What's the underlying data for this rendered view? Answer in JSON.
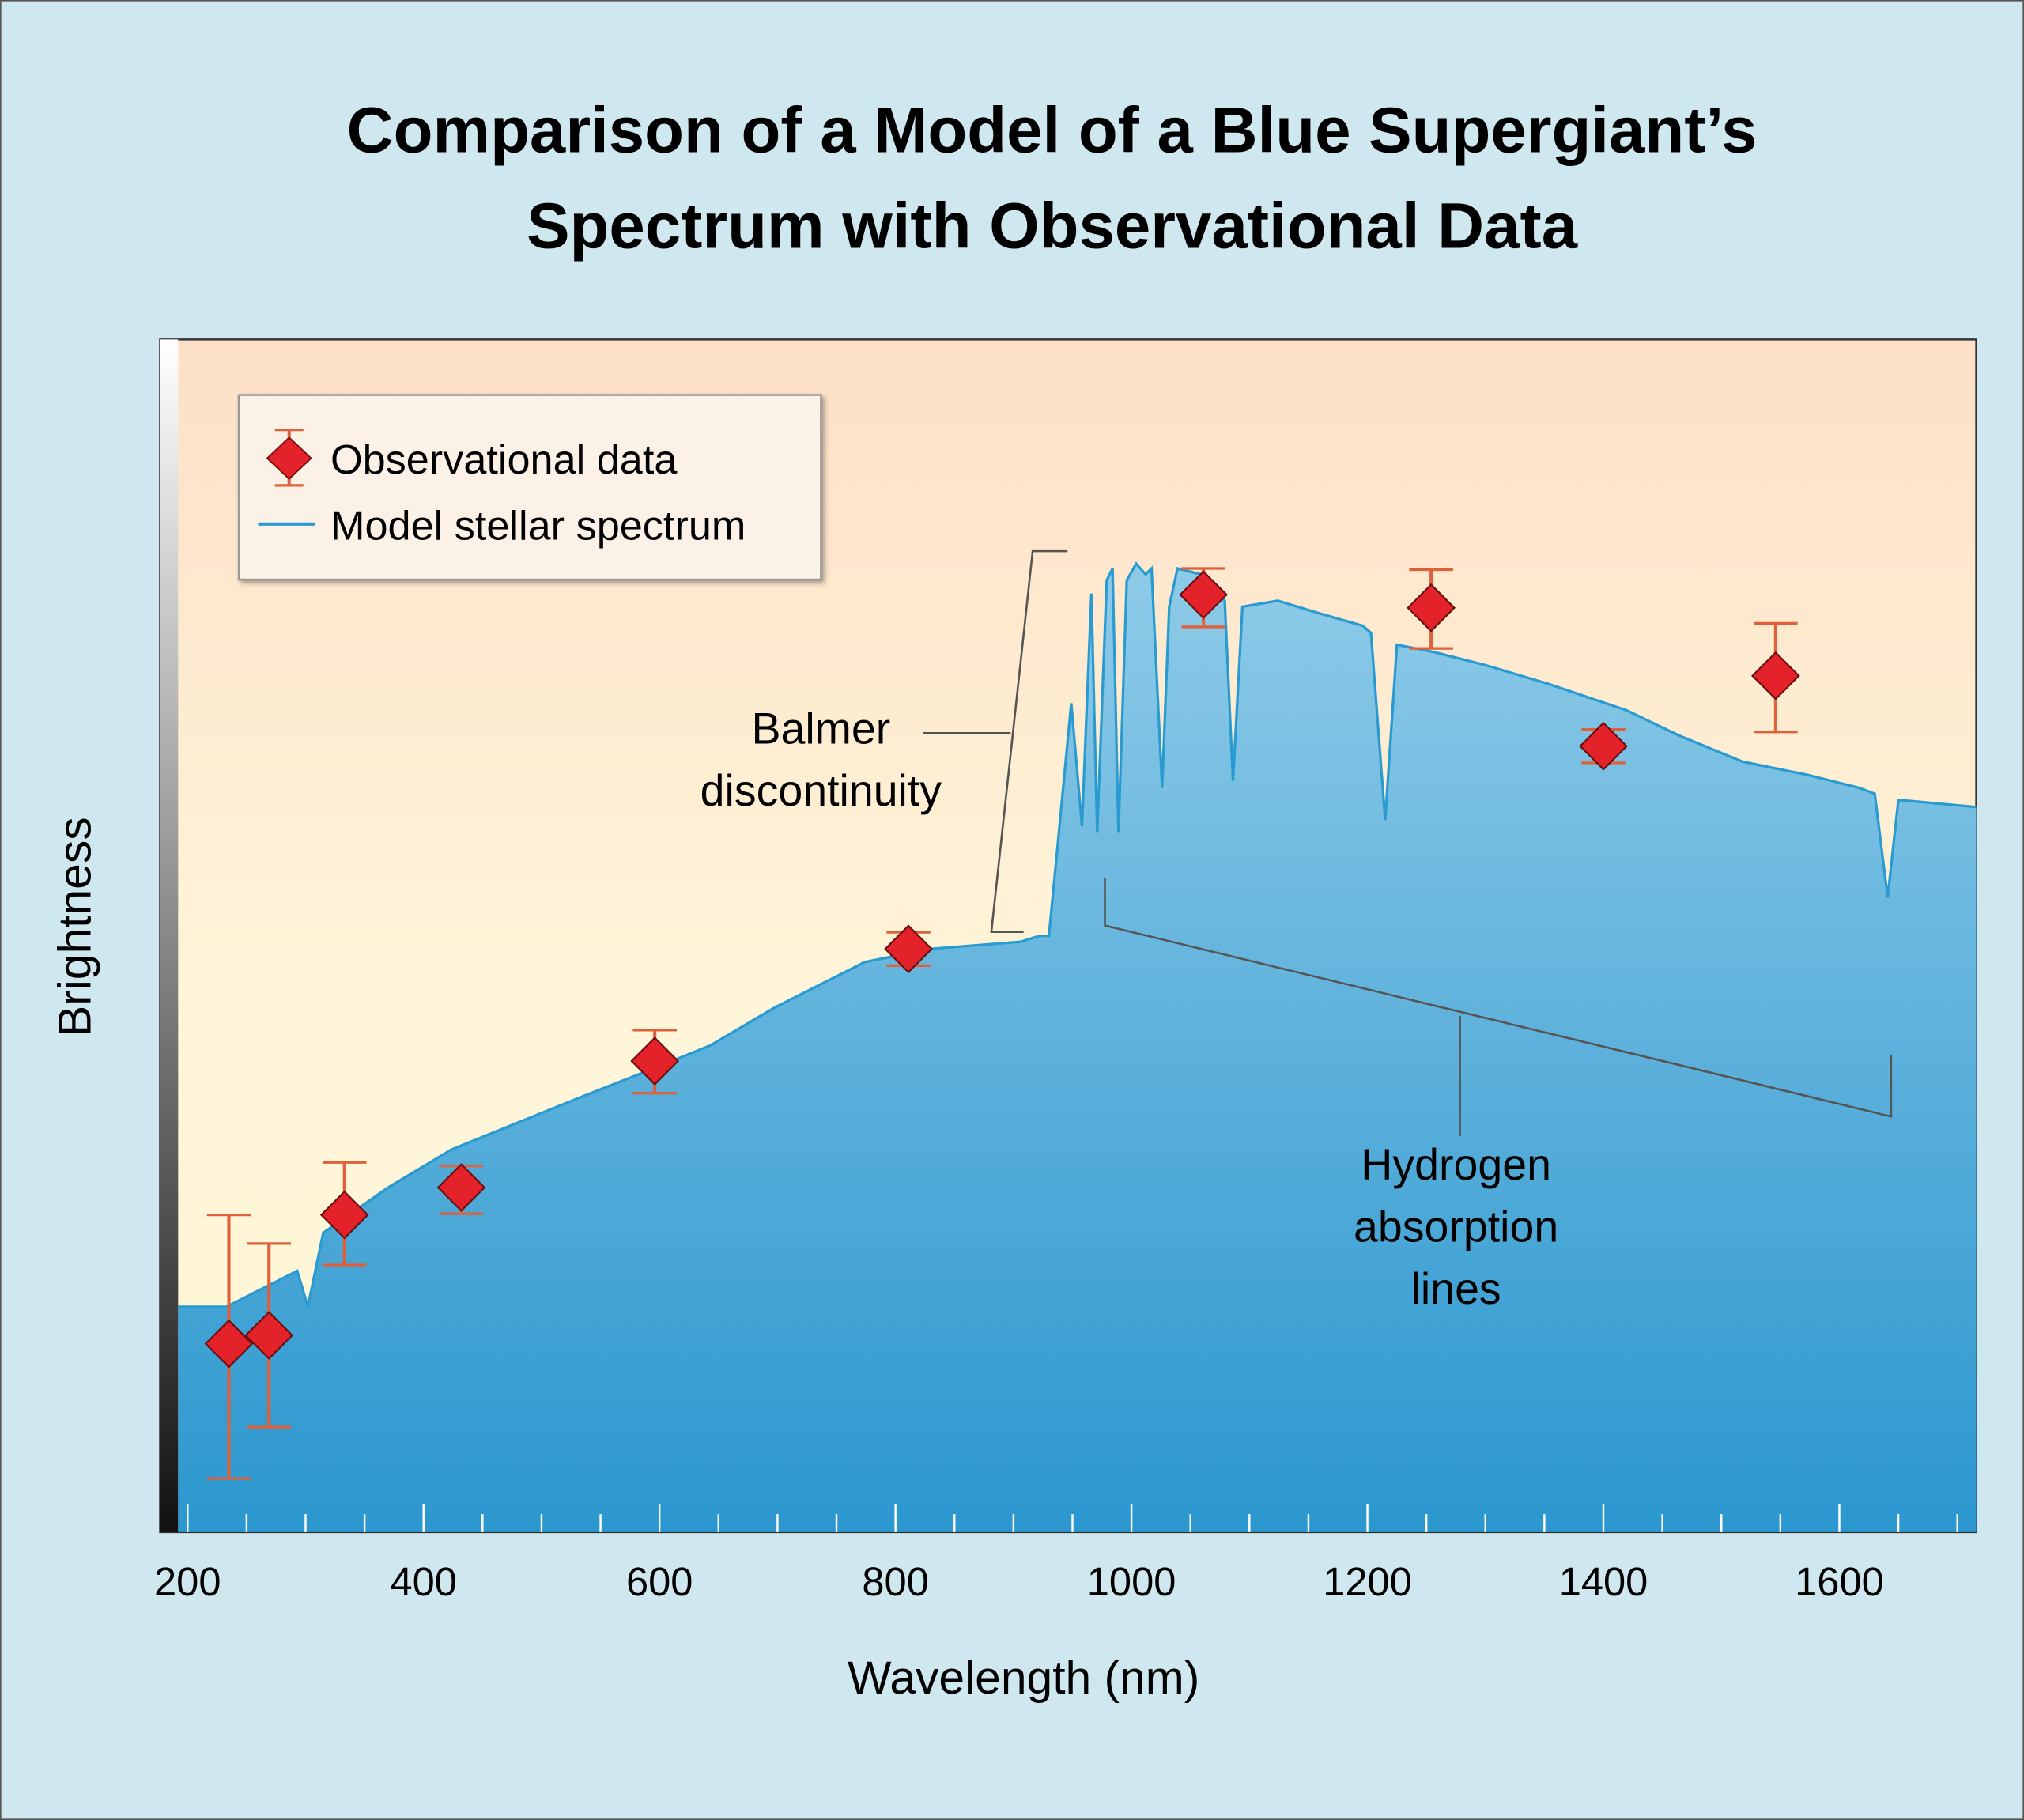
{
  "chart_data": {
    "type": "line",
    "title": "Comparison of a Model of a Blue Supergiant’s",
    "title_line2": "Spectrum with Observational Data",
    "xlabel": "Wavelength (nm)",
    "ylabel": "Brightness",
    "xlim": [
      192,
      1716
    ],
    "ylim": [
      0,
      100
    ],
    "xticks": [
      200,
      400,
      600,
      800,
      1000,
      1200,
      1400,
      1600
    ],
    "grid": false,
    "legend": {
      "placement": "top-left",
      "entries": [
        "Observational data",
        "Model stellar spectrum"
      ]
    },
    "colors": {
      "spectrum_line": "#2a9bd0",
      "spectrum_fill_top": "#8fcbe8",
      "spectrum_fill_bottom": "#2b97cf",
      "marker": "#e3222a",
      "error_bar": "#e0603a",
      "background": "#cfe7ee"
    },
    "series": [
      {
        "name": "Model stellar spectrum",
        "kind": "area",
        "x": [
          192,
          233,
          293,
          302,
          315,
          370,
          424,
          479,
          534,
          588,
          643,
          698,
          742,
          774,
          829,
          906,
          922,
          930,
          939,
          949,
          958,
          966,
          971,
          979,
          984,
          989,
          996,
          1004,
          1012,
          1017,
          1026,
          1032,
          1039,
          1059,
          1079,
          1086,
          1094,
          1124,
          1157,
          1196,
          1203,
          1215,
          1225,
          1256,
          1300,
          1354,
          1420,
          1464,
          1518,
          1573,
          1617,
          1630,
          1641,
          1650,
          1716
        ],
        "y": [
          18.9,
          18.9,
          21.9,
          18.9,
          25.1,
          28.9,
          32.1,
          34.3,
          36.5,
          38.6,
          40.8,
          44.0,
          46.2,
          47.8,
          48.9,
          49.5,
          50.0,
          50.0,
          59.2,
          69.5,
          59.2,
          78.7,
          58.7,
          79.8,
          80.8,
          58.7,
          79.8,
          81.2,
          80.3,
          80.8,
          62.4,
          77.6,
          80.8,
          80.3,
          78.1,
          63.0,
          77.6,
          78.1,
          77.1,
          76.0,
          75.4,
          59.7,
          74.4,
          73.8,
          72.7,
          71.1,
          68.9,
          66.8,
          64.6,
          63.5,
          62.4,
          61.9,
          53.2,
          61.4,
          60.8
        ]
      },
      {
        "name": "Observational data",
        "kind": "scatter",
        "x": [
          235,
          269,
          333,
          432,
          596,
          811,
          1061,
          1254,
          1400,
          1546
        ],
        "y": [
          15.8,
          16.5,
          26.6,
          28.9,
          39.5,
          48.9,
          78.6,
          77.5,
          65.9,
          71.8
        ],
        "err_high": [
          26.6,
          24.2,
          31.0,
          30.7,
          42.1,
          50.3,
          80.8,
          80.7,
          67.3,
          76.2
        ],
        "err_low": [
          4.5,
          8.8,
          22.4,
          26.7,
          36.8,
          47.5,
          75.9,
          74.1,
          64.5,
          67.1
        ]
      }
    ],
    "annotations": [
      {
        "lines": [
          "Balmer",
          "discontinuity"
        ],
        "range_nm": [
          930,
          940
        ]
      },
      {
        "lines": [
          "Hydrogen",
          "absorption",
          "lines"
        ],
        "range_nm": [
          970,
          1640
        ]
      }
    ]
  }
}
